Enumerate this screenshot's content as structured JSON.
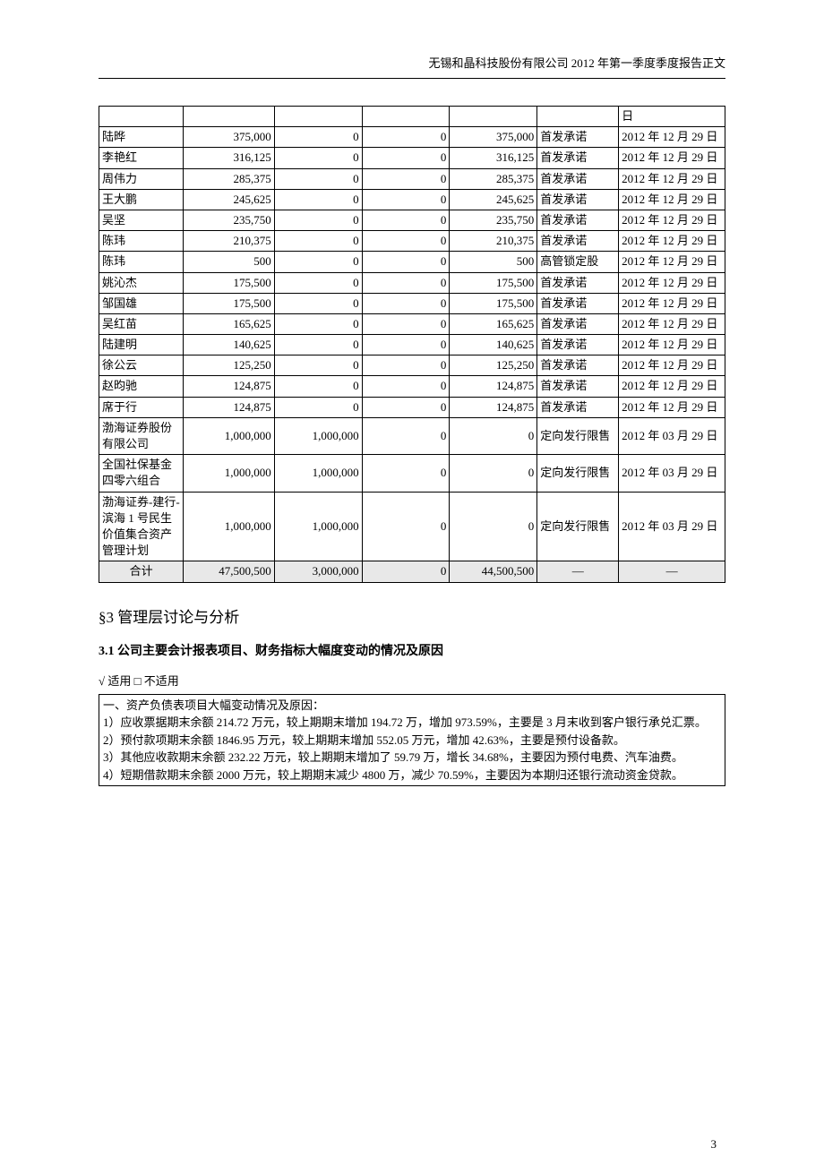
{
  "header": "无锡和晶科技股份有限公司 2012 年第一季度季度报告正文",
  "page_number": "3",
  "table": {
    "first_trailing_cell": "日",
    "rows": [
      {
        "name": "陆晔",
        "v1": "375,000",
        "v2": "0",
        "v3": "0",
        "v4": "375,000",
        "reason": "首发承诺",
        "date": "2012 年 12 月 29 日"
      },
      {
        "name": "李艳红",
        "v1": "316,125",
        "v2": "0",
        "v3": "0",
        "v4": "316,125",
        "reason": "首发承诺",
        "date": "2012 年 12 月 29 日"
      },
      {
        "name": "周伟力",
        "v1": "285,375",
        "v2": "0",
        "v3": "0",
        "v4": "285,375",
        "reason": "首发承诺",
        "date": "2012 年 12 月 29 日"
      },
      {
        "name": "王大鹏",
        "v1": "245,625",
        "v2": "0",
        "v3": "0",
        "v4": "245,625",
        "reason": "首发承诺",
        "date": "2012 年 12 月 29 日"
      },
      {
        "name": "吴坚",
        "v1": "235,750",
        "v2": "0",
        "v3": "0",
        "v4": "235,750",
        "reason": "首发承诺",
        "date": "2012 年 12 月 29 日"
      },
      {
        "name": "陈玮",
        "v1": "210,375",
        "v2": "0",
        "v3": "0",
        "v4": "210,375",
        "reason": "首发承诺",
        "date": "2012 年 12 月 29 日"
      },
      {
        "name": "陈玮",
        "v1": "500",
        "v2": "0",
        "v3": "0",
        "v4": "500",
        "reason": "高管锁定股",
        "date": "2012 年 12 月 29 日"
      },
      {
        "name": "姚沁杰",
        "v1": "175,500",
        "v2": "0",
        "v3": "0",
        "v4": "175,500",
        "reason": "首发承诺",
        "date": "2012 年 12 月 29 日"
      },
      {
        "name": "邹国雄",
        "v1": "175,500",
        "v2": "0",
        "v3": "0",
        "v4": "175,500",
        "reason": "首发承诺",
        "date": "2012 年 12 月 29 日"
      },
      {
        "name": "吴红苗",
        "v1": "165,625",
        "v2": "0",
        "v3": "0",
        "v4": "165,625",
        "reason": "首发承诺",
        "date": "2012 年 12 月 29 日"
      },
      {
        "name": "陆建明",
        "v1": "140,625",
        "v2": "0",
        "v3": "0",
        "v4": "140,625",
        "reason": "首发承诺",
        "date": "2012 年 12 月 29 日"
      },
      {
        "name": "徐公云",
        "v1": "125,250",
        "v2": "0",
        "v3": "0",
        "v4": "125,250",
        "reason": "首发承诺",
        "date": "2012 年 12 月 29 日"
      },
      {
        "name": "赵昀驰",
        "v1": "124,875",
        "v2": "0",
        "v3": "0",
        "v4": "124,875",
        "reason": "首发承诺",
        "date": "2012 年 12 月 29 日"
      },
      {
        "name": "席于行",
        "v1": "124,875",
        "v2": "0",
        "v3": "0",
        "v4": "124,875",
        "reason": "首发承诺",
        "date": "2012 年 12 月 29 日"
      },
      {
        "name": "渤海证券股份有限公司",
        "v1": "1,000,000",
        "v2": "1,000,000",
        "v3": "0",
        "v4": "0",
        "reason": "定向发行限售",
        "date": "2012 年 03 月 29 日"
      },
      {
        "name": "全国社保基金四零六组合",
        "v1": "1,000,000",
        "v2": "1,000,000",
        "v3": "0",
        "v4": "0",
        "reason": "定向发行限售",
        "date": "2012 年 03 月 29 日"
      },
      {
        "name": "渤海证券-建行-滨海 1 号民生价值集合资产管理计划",
        "v1": "1,000,000",
        "v2": "1,000,000",
        "v3": "0",
        "v4": "0",
        "reason": "定向发行限售",
        "date": "2012 年 03 月 29 日"
      }
    ],
    "footer": {
      "label": "合计",
      "v1": "47,500,500",
      "v2": "3,000,000",
      "v3": "0",
      "v4": "44,500,500",
      "reason": "—",
      "date": "—"
    }
  },
  "section3_title": "§3  管理层讨论与分析",
  "section3_1_title": "3.1 公司主要会计报表项目、财务指标大幅度变动的情况及原因",
  "applicable_text": "√ 适用 □ 不适用",
  "notes": {
    "heading": "一、资产负债表项目大幅变动情况及原因：",
    "lines": [
      "1）应收票据期末余额 214.72 万元，较上期期末增加 194.72 万，增加 973.59%，主要是 3 月末收到客户银行承兑汇票。",
      "2）预付款项期末余额 1846.95 万元，较上期期末增加 552.05 万元，增加 42.63%，主要是预付设备款。",
      "3）其他应收款期末余额 232.22 万元，较上期期末增加了 59.79 万，增长 34.68%，主要因为预付电费、汽车油费。",
      "4）短期借款期末余额 2000 万元，较上期期末减少 4800 万，减少 70.59%，主要因为本期归还银行流动资金贷款。"
    ]
  }
}
